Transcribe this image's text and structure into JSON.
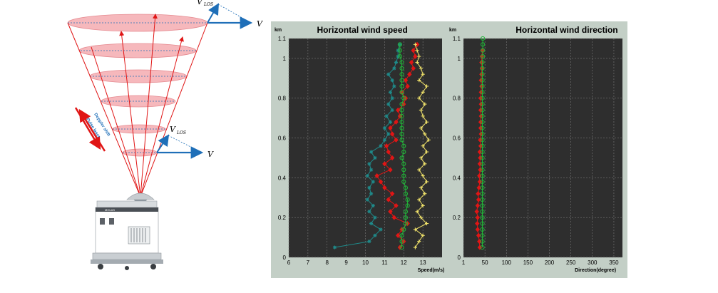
{
  "illustration": {
    "label_vlos_top": "V",
    "label_vlos_top_sub": "LOS",
    "label_v_top": "V",
    "label_vlos_mid": "V",
    "label_vlos_mid_sub": "LOS",
    "label_v_mid": "V",
    "beam_text_1": "Doppler shift",
    "beam_text_2": "Pulse laser",
    "device_brand": "MOLAS"
  },
  "chart_data": [
    {
      "type": "line",
      "title": "Horizontal wind speed",
      "xlabel": "Speed(m/s)",
      "ylabel": "km",
      "xlim": [
        6,
        14
      ],
      "ylim": [
        0,
        1.1
      ],
      "xticks": [
        "6",
        "7",
        "8",
        "9",
        "10",
        "11",
        "12",
        "13"
      ],
      "yticks": [
        "0",
        "0.2",
        "0.4",
        "0.6",
        "0.8",
        "1",
        "1.1"
      ],
      "background": "#2e2e2e",
      "grid": true,
      "series": [
        {
          "color": "#1f8a8a",
          "marker": "star",
          "points": [
            [
              8.4,
              0.05
            ],
            [
              10.2,
              0.08
            ],
            [
              10.5,
              0.11
            ],
            [
              10.8,
              0.14
            ],
            [
              10.3,
              0.17
            ],
            [
              10.5,
              0.2
            ],
            [
              10.2,
              0.23
            ],
            [
              10.4,
              0.26
            ],
            [
              10.1,
              0.29
            ],
            [
              10.3,
              0.32
            ],
            [
              10.2,
              0.35
            ],
            [
              10.4,
              0.38
            ],
            [
              10.1,
              0.41
            ],
            [
              10.3,
              0.44
            ],
            [
              10.2,
              0.47
            ],
            [
              10.5,
              0.5
            ],
            [
              10.3,
              0.53
            ],
            [
              10.8,
              0.56
            ],
            [
              11.0,
              0.59
            ],
            [
              11.2,
              0.62
            ],
            [
              11.0,
              0.65
            ],
            [
              11.3,
              0.68
            ],
            [
              11.1,
              0.71
            ],
            [
              11.4,
              0.74
            ],
            [
              11.2,
              0.77
            ],
            [
              11.4,
              0.8
            ],
            [
              11.3,
              0.83
            ],
            [
              11.5,
              0.86
            ],
            [
              11.4,
              0.89
            ],
            [
              11.2,
              0.92
            ],
            [
              11.5,
              0.95
            ],
            [
              11.6,
              0.98
            ],
            [
              11.7,
              1.01
            ],
            [
              11.7,
              1.04
            ],
            [
              11.8,
              1.07
            ]
          ]
        },
        {
          "color": "#e01515",
          "marker": "diamond",
          "points": [
            [
              11.8,
              0.05
            ],
            [
              12.0,
              0.08
            ],
            [
              11.7,
              0.11
            ],
            [
              11.9,
              0.14
            ],
            [
              12.2,
              0.17
            ],
            [
              11.5,
              0.2
            ],
            [
              11.3,
              0.23
            ],
            [
              11.6,
              0.26
            ],
            [
              11.2,
              0.29
            ],
            [
              11.4,
              0.32
            ],
            [
              11.0,
              0.35
            ],
            [
              10.8,
              0.38
            ],
            [
              10.6,
              0.41
            ],
            [
              11.3,
              0.44
            ],
            [
              11.0,
              0.47
            ],
            [
              11.4,
              0.5
            ],
            [
              11.2,
              0.53
            ],
            [
              11.1,
              0.56
            ],
            [
              11.6,
              0.59
            ],
            [
              11.4,
              0.62
            ],
            [
              11.3,
              0.65
            ],
            [
              11.6,
              0.68
            ],
            [
              11.8,
              0.71
            ],
            [
              11.7,
              0.74
            ],
            [
              12.0,
              0.77
            ],
            [
              12.1,
              0.8
            ],
            [
              11.9,
              0.83
            ],
            [
              12.2,
              0.86
            ],
            [
              12.1,
              0.89
            ],
            [
              12.3,
              0.92
            ],
            [
              12.5,
              0.95
            ],
            [
              12.4,
              0.98
            ],
            [
              12.6,
              1.01
            ],
            [
              12.5,
              1.04
            ],
            [
              12.7,
              1.07
            ]
          ]
        },
        {
          "color": "#f0e26a",
          "marker": "plus",
          "points": [
            [
              12.6,
              0.05
            ],
            [
              12.8,
              0.08
            ],
            [
              13.0,
              0.11
            ],
            [
              12.6,
              0.14
            ],
            [
              13.2,
              0.17
            ],
            [
              12.9,
              0.2
            ],
            [
              12.7,
              0.23
            ],
            [
              13.0,
              0.26
            ],
            [
              12.8,
              0.29
            ],
            [
              13.1,
              0.32
            ],
            [
              12.9,
              0.35
            ],
            [
              13.2,
              0.38
            ],
            [
              13.0,
              0.41
            ],
            [
              12.8,
              0.44
            ],
            [
              13.1,
              0.47
            ],
            [
              12.9,
              0.5
            ],
            [
              13.2,
              0.53
            ],
            [
              13.0,
              0.56
            ],
            [
              13.3,
              0.59
            ],
            [
              13.1,
              0.62
            ],
            [
              12.9,
              0.65
            ],
            [
              13.2,
              0.68
            ],
            [
              13.0,
              0.71
            ],
            [
              12.9,
              0.74
            ],
            [
              13.1,
              0.77
            ],
            [
              12.8,
              0.8
            ],
            [
              13.0,
              0.83
            ],
            [
              13.2,
              0.86
            ],
            [
              12.8,
              0.89
            ],
            [
              13.0,
              0.92
            ],
            [
              12.9,
              0.95
            ],
            [
              12.7,
              0.98
            ],
            [
              12.8,
              1.01
            ],
            [
              12.7,
              1.04
            ],
            [
              12.6,
              1.07
            ]
          ]
        },
        {
          "color": "#22b53a",
          "marker": "circle",
          "points": [
            [
              11.9,
              0.05
            ],
            [
              11.9,
              0.08
            ],
            [
              11.9,
              0.11
            ],
            [
              12.0,
              0.14
            ],
            [
              12.1,
              0.17
            ],
            [
              12.1,
              0.2
            ],
            [
              12.1,
              0.23
            ],
            [
              12.2,
              0.26
            ],
            [
              12.2,
              0.29
            ],
            [
              12.1,
              0.32
            ],
            [
              12.1,
              0.35
            ],
            [
              12.0,
              0.38
            ],
            [
              12.0,
              0.41
            ],
            [
              12.0,
              0.44
            ],
            [
              12.0,
              0.47
            ],
            [
              11.9,
              0.5
            ],
            [
              12.0,
              0.53
            ],
            [
              12.0,
              0.56
            ],
            [
              11.9,
              0.59
            ],
            [
              11.9,
              0.62
            ],
            [
              11.9,
              0.65
            ],
            [
              11.9,
              0.68
            ],
            [
              11.9,
              0.71
            ],
            [
              11.9,
              0.74
            ],
            [
              11.9,
              0.77
            ],
            [
              12.0,
              0.8
            ],
            [
              11.9,
              0.83
            ],
            [
              11.9,
              0.86
            ],
            [
              11.9,
              0.89
            ],
            [
              11.9,
              0.92
            ],
            [
              11.9,
              0.95
            ],
            [
              11.9,
              0.98
            ],
            [
              11.8,
              1.01
            ],
            [
              11.8,
              1.04
            ],
            [
              11.8,
              1.07
            ]
          ]
        }
      ]
    },
    {
      "type": "line",
      "title": "Horizontal wind direction",
      "xlabel": "Direction(degree)",
      "ylabel": "km",
      "xlim": [
        0,
        370
      ],
      "ylim": [
        0,
        1.1
      ],
      "xticks": [
        "1",
        "50",
        "100",
        "150",
        "200",
        "250",
        "300",
        "350"
      ],
      "yticks": [
        "0",
        "0.2",
        "0.4",
        "0.6",
        "0.8",
        "1",
        "1.1"
      ],
      "background": "#2e2e2e",
      "grid": true,
      "series": [
        {
          "color": "#e01515",
          "marker": "diamond",
          "points": [
            [
              38,
              0.05
            ],
            [
              37,
              0.08
            ],
            [
              35,
              0.11
            ],
            [
              33,
              0.14
            ],
            [
              32,
              0.17
            ],
            [
              33,
              0.2
            ],
            [
              31,
              0.23
            ],
            [
              33,
              0.26
            ],
            [
              35,
              0.29
            ],
            [
              34,
              0.32
            ],
            [
              36,
              0.35
            ],
            [
              38,
              0.38
            ],
            [
              37,
              0.41
            ],
            [
              39,
              0.44
            ],
            [
              38,
              0.47
            ],
            [
              39,
              0.5
            ],
            [
              38,
              0.53
            ],
            [
              40,
              0.56
            ],
            [
              39,
              0.59
            ],
            [
              41,
              0.62
            ],
            [
              40,
              0.65
            ],
            [
              40,
              0.68
            ],
            [
              41,
              0.71
            ],
            [
              40,
              0.74
            ],
            [
              41,
              0.77
            ],
            [
              40,
              0.8
            ],
            [
              41,
              0.83
            ],
            [
              42,
              0.86
            ],
            [
              41,
              0.89
            ],
            [
              42,
              0.92
            ],
            [
              43,
              0.95
            ],
            [
              42,
              0.98
            ],
            [
              43,
              1.01
            ],
            [
              44,
              1.04
            ]
          ]
        },
        {
          "color": "#22b53a",
          "marker": "circle",
          "points": [
            [
              44,
              0.05
            ],
            [
              44,
              0.08
            ],
            [
              44,
              0.11
            ],
            [
              44,
              0.14
            ],
            [
              44,
              0.17
            ],
            [
              44,
              0.2
            ],
            [
              44,
              0.23
            ],
            [
              44,
              0.26
            ],
            [
              44,
              0.29
            ],
            [
              44,
              0.32
            ],
            [
              44,
              0.35
            ],
            [
              44,
              0.38
            ],
            [
              44,
              0.41
            ],
            [
              44,
              0.44
            ],
            [
              44,
              0.47
            ],
            [
              44,
              0.5
            ],
            [
              44,
              0.53
            ],
            [
              44,
              0.56
            ],
            [
              44,
              0.59
            ],
            [
              44,
              0.62
            ],
            [
              44,
              0.65
            ],
            [
              44,
              0.68
            ],
            [
              44,
              0.71
            ],
            [
              44,
              0.74
            ],
            [
              44,
              0.77
            ],
            [
              44,
              0.8
            ],
            [
              44,
              0.83
            ],
            [
              44,
              0.86
            ],
            [
              44,
              0.89
            ],
            [
              44,
              0.92
            ],
            [
              44,
              0.95
            ],
            [
              44,
              0.98
            ],
            [
              45,
              1.01
            ],
            [
              45,
              1.04
            ],
            [
              45,
              1.07
            ],
            [
              45,
              1.1
            ]
          ]
        }
      ]
    }
  ]
}
